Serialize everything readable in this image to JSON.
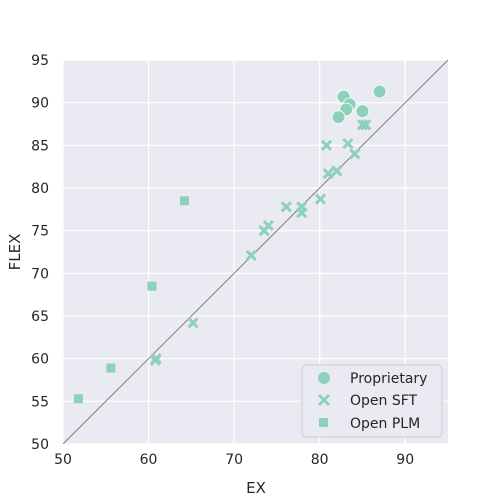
{
  "chart_data": {
    "type": "scatter",
    "xlabel": "EX",
    "ylabel": "FLEX",
    "xlim": [
      50,
      95
    ],
    "ylim": [
      50,
      95
    ],
    "xticks": [
      "50",
      "60",
      "70",
      "80",
      "90"
    ],
    "yticks": [
      "50",
      "55",
      "60",
      "65",
      "70",
      "75",
      "80",
      "85",
      "90",
      "95"
    ],
    "grid": true,
    "reference_line": "y = x",
    "legend_position": "bottom-right",
    "colors": {
      "background": "#EAEAF2",
      "grid": "#FFFFFF",
      "marker": "#8ED1BA",
      "diagonal": "#808080"
    },
    "series": [
      {
        "name": "Proprietary",
        "marker": "circle",
        "points": [
          [
            82.8,
            90.7
          ],
          [
            83.5,
            89.8
          ],
          [
            83.1,
            89.2
          ],
          [
            85.0,
            89.0
          ],
          [
            87.0,
            91.3
          ],
          [
            82.2,
            88.3
          ]
        ]
      },
      {
        "name": "Open SFT",
        "marker": "x",
        "points": [
          [
            85.4,
            87.4
          ],
          [
            85.0,
            87.4
          ],
          [
            83.3,
            85.2
          ],
          [
            80.8,
            85.0
          ],
          [
            84.1,
            84.0
          ],
          [
            82.0,
            82.0
          ],
          [
            81.0,
            81.7
          ],
          [
            80.1,
            78.7
          ],
          [
            77.9,
            77.8
          ],
          [
            76.1,
            77.8
          ],
          [
            77.9,
            77.1
          ],
          [
            74.0,
            75.6
          ],
          [
            73.5,
            75.0
          ],
          [
            72.0,
            72.1
          ],
          [
            65.2,
            64.2
          ],
          [
            60.9,
            60.0
          ],
          [
            60.8,
            59.8
          ]
        ]
      },
      {
        "name": "Open PLM",
        "marker": "square",
        "points": [
          [
            64.2,
            78.5
          ],
          [
            60.4,
            68.5
          ],
          [
            55.6,
            58.9
          ],
          [
            51.8,
            55.3
          ]
        ]
      }
    ]
  }
}
